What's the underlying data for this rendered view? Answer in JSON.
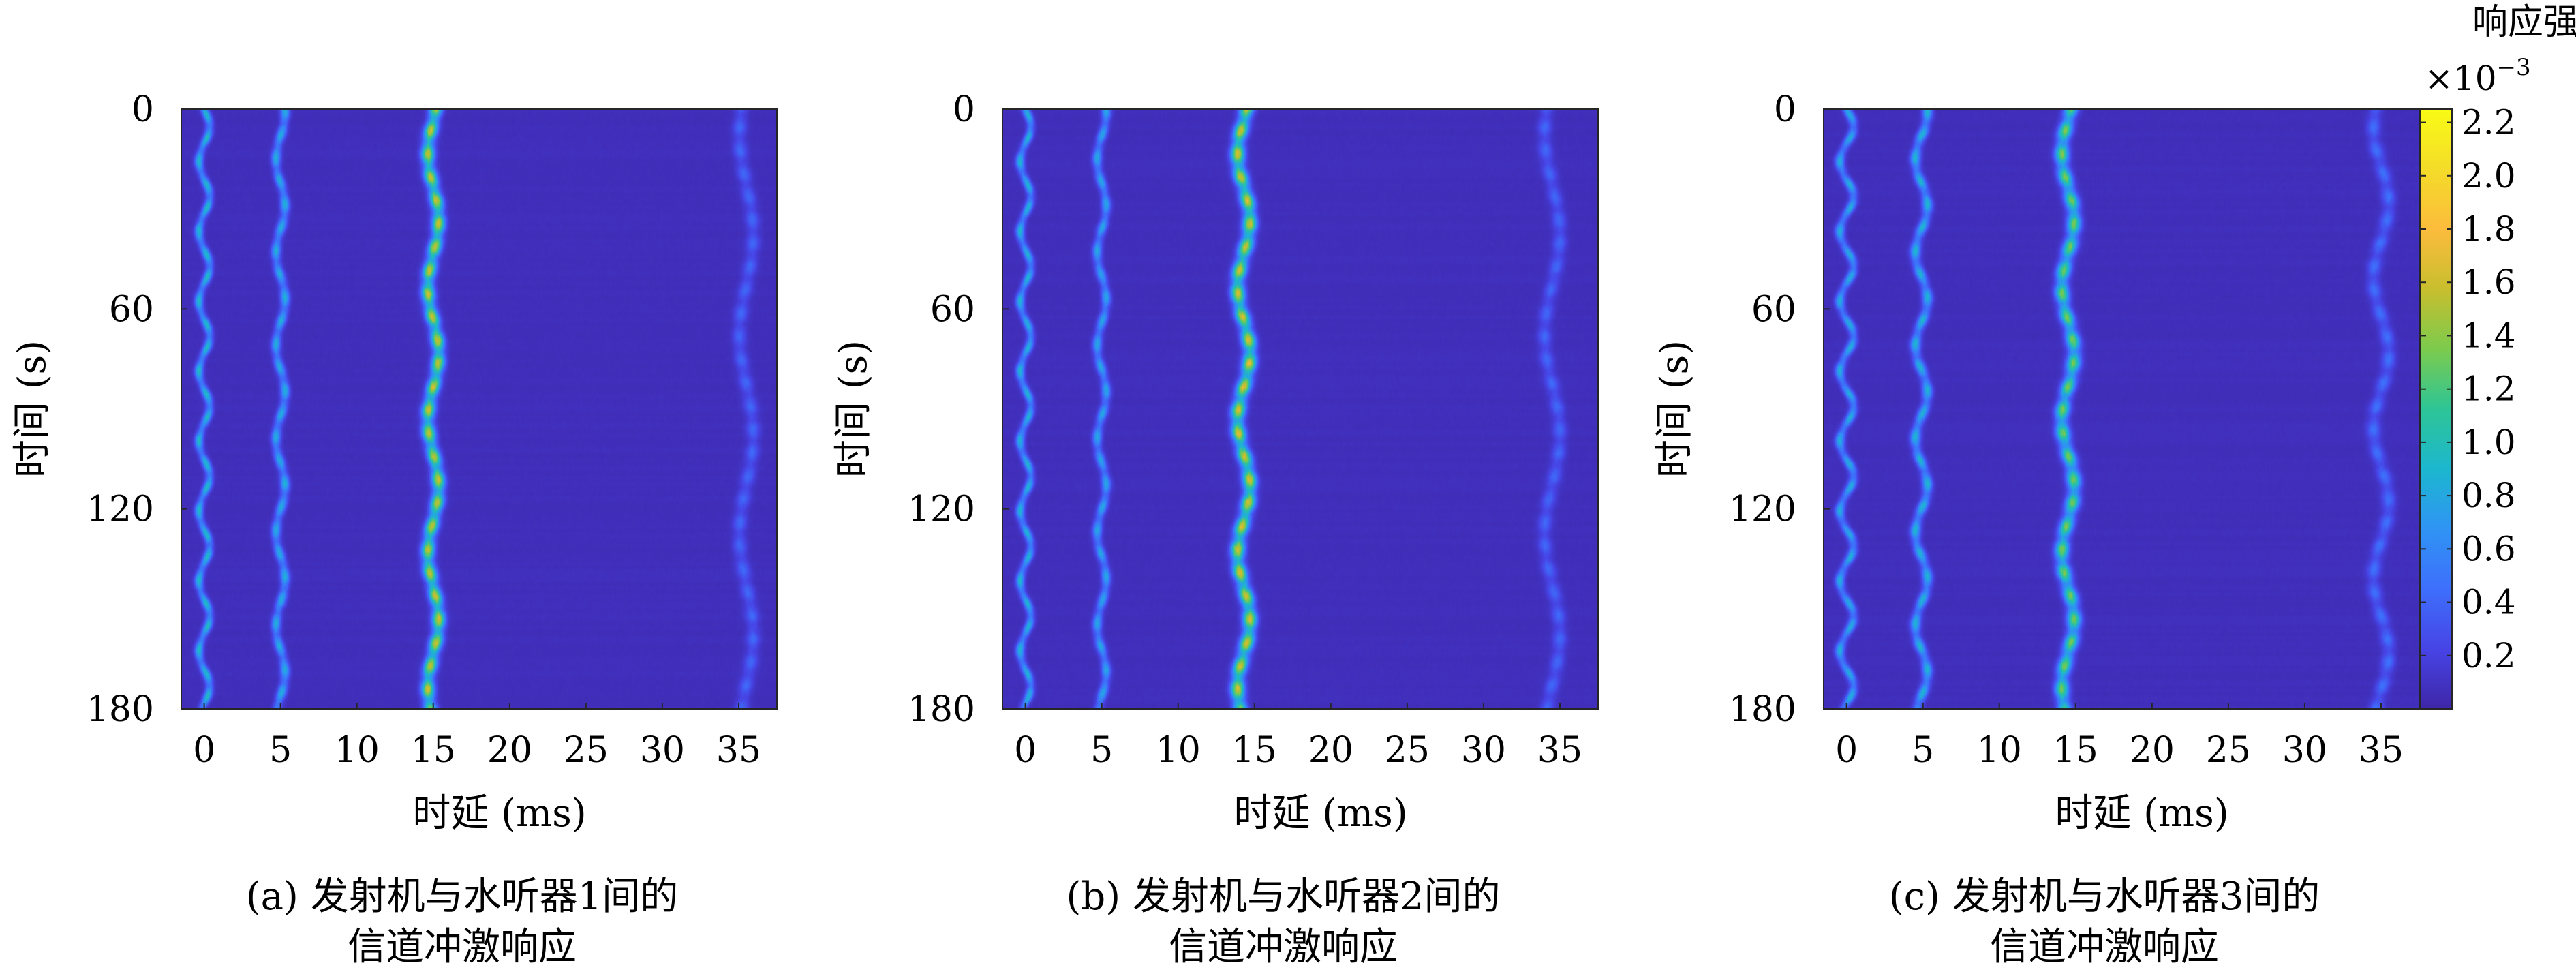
{
  "colorbar": {
    "title": "响应强度",
    "exponent_base": "×10",
    "exponent_power": "−3",
    "tick_labels": [
      "0.2",
      "0.4",
      "0.6",
      "0.8",
      "1.0",
      "1.2",
      "1.4",
      "1.6",
      "1.8",
      "2.0",
      "2.2"
    ],
    "range": [
      0.0,
      2.25
    ],
    "colormap": [
      "#3e26a8",
      "#4744e6",
      "#3e6ffc",
      "#2f94f4",
      "#1cb7cf",
      "#2dc596",
      "#7ccb4d",
      "#c8be2e",
      "#fcbc3c",
      "#f4dc29",
      "#f9fb15"
    ]
  },
  "chart_data": [
    {
      "type": "heatmap",
      "xlabel": "时延 (ms)",
      "ylabel": "时间 (s)",
      "x_tick_labels": [
        "0",
        "5",
        "10",
        "15",
        "20",
        "25",
        "30",
        "35"
      ],
      "y_tick_labels": [
        "0",
        "60",
        "120",
        "180"
      ],
      "xlim": [
        -1.5,
        37.5
      ],
      "ylim": [
        0,
        180
      ],
      "y_reversed": true,
      "background_value": 0.05,
      "caption_line1": "(a) 发射机与水听器1间的",
      "caption_line2": "信道冲激响应",
      "paths": [
        {
          "delay_ms": 0.0,
          "amplitude": 0.9,
          "wobble_ms": 0.35,
          "period_s": 21,
          "width_ms": 0.18
        },
        {
          "delay_ms": 5.0,
          "amplitude": 0.8,
          "wobble_ms": 0.3,
          "period_s": 28,
          "width_ms": 0.2
        },
        {
          "delay_ms": 15.0,
          "amplitude": 1.55,
          "wobble_ms": 0.35,
          "period_s": 40,
          "width_ms": 0.28
        },
        {
          "delay_ms": 35.5,
          "amplitude": 0.35,
          "wobble_ms": 0.45,
          "period_s": 60,
          "width_ms": 0.3
        }
      ]
    },
    {
      "type": "heatmap",
      "xlabel": "时延 (ms)",
      "ylabel": "时间 (s)",
      "x_tick_labels": [
        "0",
        "5",
        "10",
        "15",
        "20",
        "25",
        "30",
        "35"
      ],
      "y_tick_labels": [
        "0",
        "60",
        "120",
        "180"
      ],
      "xlim": [
        -1.5,
        37.5
      ],
      "ylim": [
        0,
        180
      ],
      "y_reversed": true,
      "background_value": 0.05,
      "caption_line1": "(b) 发射机与水听器2间的",
      "caption_line2": "信道冲激响应",
      "paths": [
        {
          "delay_ms": 0.0,
          "amplitude": 0.85,
          "wobble_ms": 0.35,
          "period_s": 21,
          "width_ms": 0.18
        },
        {
          "delay_ms": 5.0,
          "amplitude": 0.75,
          "wobble_ms": 0.3,
          "period_s": 28,
          "width_ms": 0.2
        },
        {
          "delay_ms": 14.3,
          "amplitude": 1.6,
          "wobble_ms": 0.4,
          "period_s": 40,
          "width_ms": 0.3
        },
        {
          "delay_ms": 34.5,
          "amplitude": 0.35,
          "wobble_ms": 0.5,
          "period_s": 60,
          "width_ms": 0.3
        }
      ]
    },
    {
      "type": "heatmap",
      "xlabel": "时延 (ms)",
      "ylabel": "时间 (s)",
      "x_tick_labels": [
        "0",
        "5",
        "10",
        "15",
        "20",
        "25",
        "30",
        "35"
      ],
      "y_tick_labels": [
        "0",
        "60",
        "120",
        "180"
      ],
      "xlim": [
        -1.5,
        37.5
      ],
      "ylim": [
        0,
        180
      ],
      "y_reversed": true,
      "background_value": 0.05,
      "caption_line1": "(c) 发射机与水听器3间的",
      "caption_line2": "信道冲激响应",
      "paths": [
        {
          "delay_ms": 0.0,
          "amplitude": 0.8,
          "wobble_ms": 0.45,
          "period_s": 21,
          "width_ms": 0.2
        },
        {
          "delay_ms": 4.9,
          "amplitude": 0.85,
          "wobble_ms": 0.4,
          "period_s": 28,
          "width_ms": 0.22
        },
        {
          "delay_ms": 14.5,
          "amplitude": 1.3,
          "wobble_ms": 0.4,
          "period_s": 40,
          "width_ms": 0.3
        },
        {
          "delay_ms": 35.0,
          "amplitude": 0.4,
          "wobble_ms": 0.5,
          "period_s": 45,
          "width_ms": 0.3
        }
      ]
    }
  ]
}
